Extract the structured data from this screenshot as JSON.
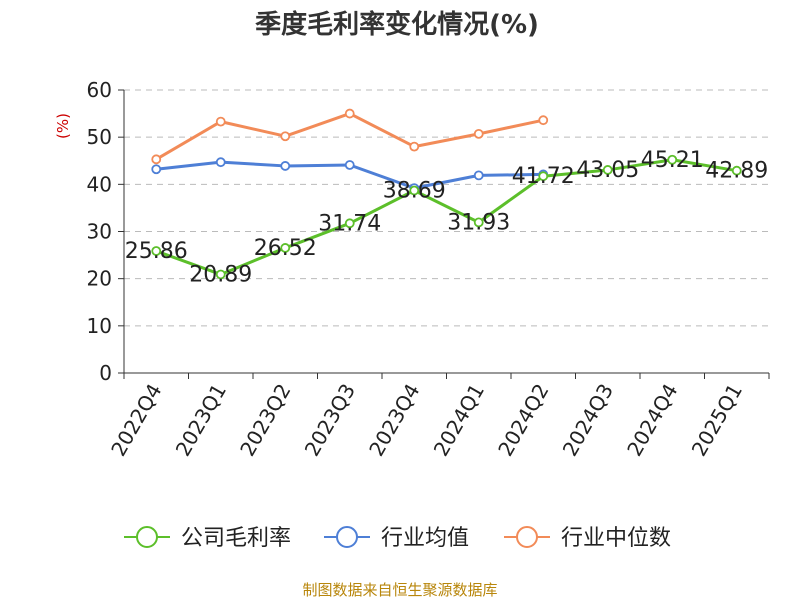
{
  "chart_data": {
    "type": "line",
    "title": "季度毛利率变化情况(%)",
    "ylabel": "(%)",
    "ylim": [
      0,
      60
    ],
    "yticks": [
      0,
      10,
      20,
      30,
      40,
      50,
      60
    ],
    "grid": true,
    "legend_position": "bottom",
    "categories": [
      "2022Q4",
      "2023Q1",
      "2023Q2",
      "2023Q3",
      "2023Q4",
      "2024Q1",
      "2024Q2",
      "2024Q3",
      "2024Q4",
      "2025Q1"
    ],
    "series": [
      {
        "name": "公司毛利率",
        "color": "#5cbf2a",
        "values": [
          25.86,
          20.89,
          26.52,
          31.74,
          38.69,
          31.93,
          41.72,
          43.05,
          45.21,
          42.89
        ],
        "labels": [
          "25.86",
          "20.89",
          "26.52",
          "31.74",
          "38.69",
          "31.93",
          "41.72",
          "43.05",
          "45.21",
          "42.89"
        ]
      },
      {
        "name": "行业均值",
        "color": "#4e7fd6",
        "values": [
          43.2,
          44.7,
          43.9,
          44.1,
          39.2,
          41.9,
          42.1,
          null,
          null,
          null
        ]
      },
      {
        "name": "行业中位数",
        "color": "#f28b58",
        "values": [
          45.3,
          53.3,
          50.2,
          55.0,
          48.0,
          50.7,
          53.6,
          null,
          null,
          null
        ]
      }
    ]
  },
  "source_text": "制图数据来自恒生聚源数据库",
  "colors": {
    "title": "#333333",
    "ylabel": "#cc0000",
    "source": "#b8860b",
    "grid": "#bbbbbb"
  }
}
